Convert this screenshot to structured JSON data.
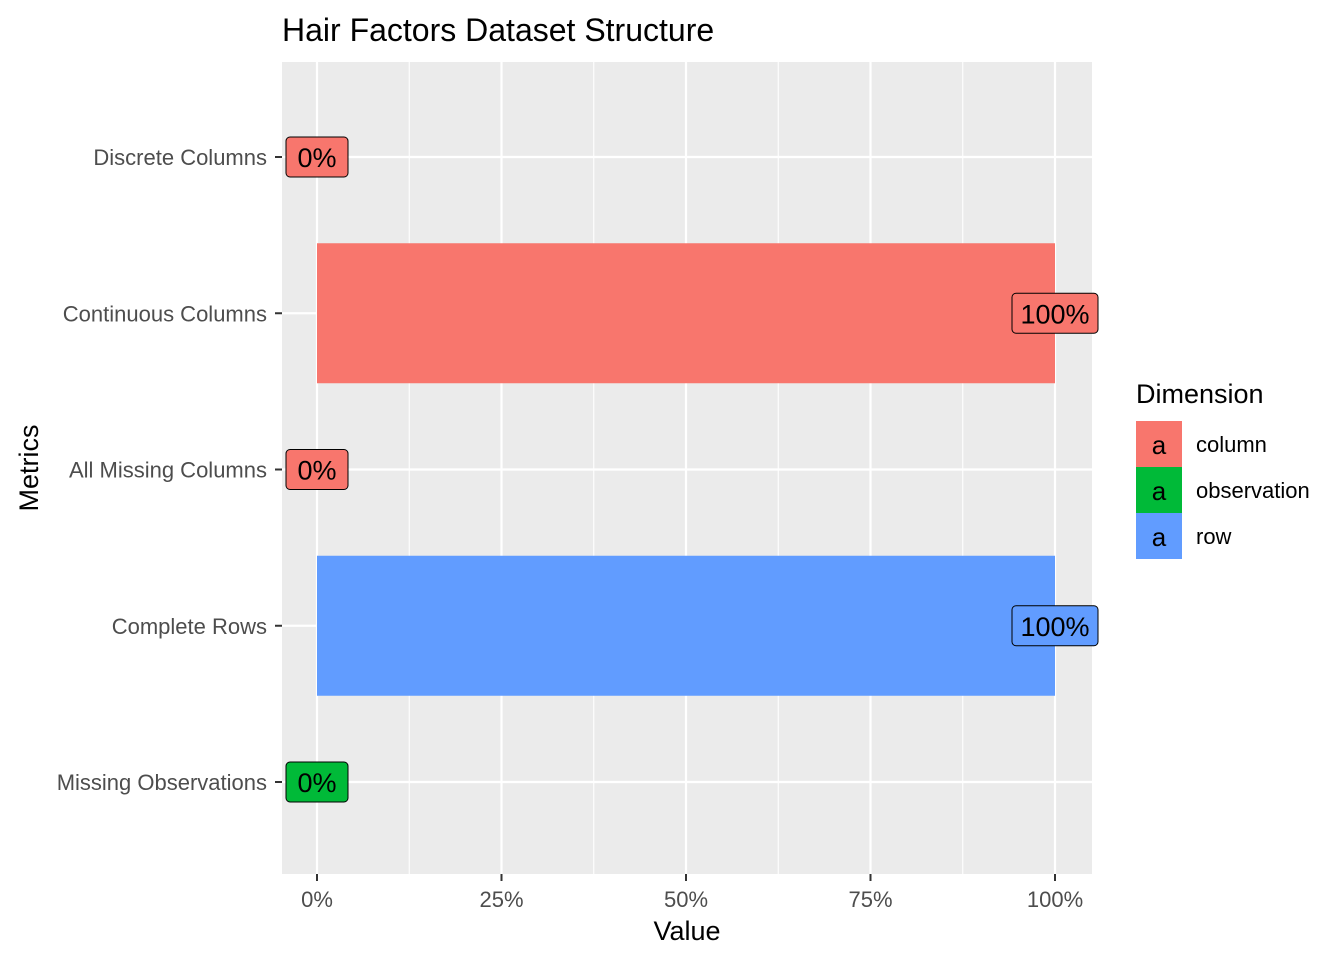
{
  "chart_data": {
    "type": "bar",
    "orientation": "horizontal",
    "title": "Hair Factors Dataset Structure",
    "xlabel": "Value",
    "ylabel": "Metrics",
    "xlim": [
      0,
      1
    ],
    "x_ticks": [
      0,
      0.25,
      0.5,
      0.75,
      1
    ],
    "x_tick_labels": [
      "0%",
      "25%",
      "50%",
      "75%",
      "100%"
    ],
    "grid": true,
    "legend": {
      "title": "Dimension",
      "position": "right",
      "key_glyph": "a",
      "entries": [
        {
          "label": "column",
          "color": "#F8766D"
        },
        {
          "label": "observation",
          "color": "#00BA38"
        },
        {
          "label": "row",
          "color": "#619CFF"
        }
      ]
    },
    "bars": [
      {
        "category": "Discrete Columns",
        "value": 0,
        "label": "0%",
        "dimension": "column"
      },
      {
        "category": "Continuous Columns",
        "value": 1,
        "label": "100%",
        "dimension": "column"
      },
      {
        "category": "All Missing Columns",
        "value": 0,
        "label": "0%",
        "dimension": "column"
      },
      {
        "category": "Complete Rows",
        "value": 1,
        "label": "100%",
        "dimension": "row"
      },
      {
        "category": "Missing Observations",
        "value": 0,
        "label": "0%",
        "dimension": "observation"
      }
    ]
  },
  "colors": {
    "panel_background": "#EBEBEB",
    "grid_major": "#FFFFFF",
    "column": "#F8766D",
    "observation": "#00BA38",
    "row": "#619CFF"
  }
}
